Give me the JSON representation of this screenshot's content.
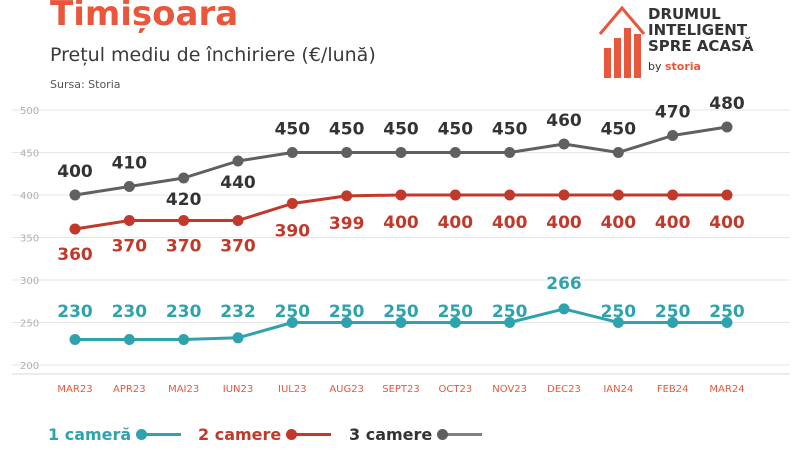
{
  "header": {
    "title": "Timișoara",
    "subtitle": "Prețul mediu de închiriere (€/lună)",
    "source": "Sursa: Storia"
  },
  "brand": {
    "line1": "DRUMUL",
    "line2": "INTELIGENT",
    "line3": "SPRE ACASĂ",
    "by": "by",
    "storia": "storia",
    "icon": "house-bar-chart-icon"
  },
  "colors": {
    "title": "#e8573c",
    "series_1": "#2fa3ad",
    "series_2": "#c0392b",
    "series_3": "#606060",
    "grid": "#e6e6e6",
    "axis_text": "#e8573c"
  },
  "chart_data": {
    "type": "line",
    "x": [
      "MAR23",
      "APR23",
      "MAI23",
      "IUN23",
      "IUL23",
      "AUG23",
      "SEPT23",
      "OCT23",
      "NOV23",
      "DEC23",
      "IAN24",
      "FEB24",
      "MAR24"
    ],
    "yticks": [
      200,
      250,
      300,
      350,
      400,
      450,
      500
    ],
    "ylim": [
      200,
      500
    ],
    "grid": true,
    "legend_position": "bottom",
    "series": [
      {
        "name": "1 cameră",
        "values": [
          230,
          230,
          230,
          232,
          250,
          250,
          250,
          250,
          250,
          266,
          250,
          250,
          250
        ]
      },
      {
        "name": "2 camere",
        "values": [
          360,
          370,
          370,
          370,
          390,
          399,
          400,
          400,
          400,
          400,
          400,
          400,
          400
        ]
      },
      {
        "name": "3 camere",
        "values": [
          400,
          410,
          420,
          440,
          450,
          450,
          450,
          450,
          450,
          460,
          450,
          470,
          480
        ]
      }
    ]
  }
}
